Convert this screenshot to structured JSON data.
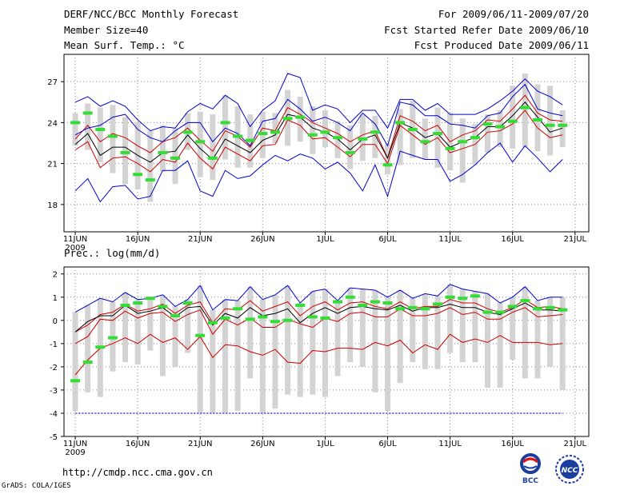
{
  "header": {
    "title": "DERF/NCC/BCC Monthly Forecast",
    "member": "Member Size=40",
    "variable1": "Mean Surf. Temp.: °C",
    "period": "For 2009/06/11-2009/07/20",
    "started": "Fcst Started Refer Date 2009/06/10",
    "produced": "Fcst Produced Date 2009/06/11"
  },
  "footer": {
    "url": "http://cmdp.ncc.cma.gov.cn",
    "grads": "GrADS: COLA/IGES",
    "logo1_text": "BCC",
    "logo2_text": "NCC"
  },
  "colors": {
    "envelope": "#0000cc",
    "spread": "#cc0000",
    "mean": "#000000",
    "median": "#33dd33",
    "box": "#d3d3d3",
    "grid": "#888888"
  },
  "chart_data": [
    {
      "type": "line",
      "title": "Mean Surf. Temp.: °C",
      "x": [
        "11JUN",
        "12JUN",
        "13JUN",
        "14JUN",
        "15JUN",
        "16JUN",
        "17JUN",
        "18JUN",
        "19JUN",
        "20JUN",
        "21JUN",
        "22JUN",
        "23JUN",
        "24JUN",
        "25JUN",
        "26JUN",
        "27JUN",
        "28JUN",
        "29JUN",
        "30JUN",
        "1JUL",
        "2JUL",
        "3JUL",
        "4JUL",
        "5JUL",
        "6JUL",
        "7JUL",
        "8JUL",
        "9JUL",
        "10JUL",
        "11JUL",
        "12JUL",
        "13JUL",
        "14JUL",
        "15JUL",
        "16JUL",
        "17JUL",
        "18JUL",
        "19JUL",
        "20JUL"
      ],
      "x_tick_labels": [
        "11JUN",
        "16JUN",
        "21JUN",
        "26JUN",
        "1JUL",
        "6JUL",
        "11JUL",
        "16JUL",
        "21JUL"
      ],
      "x_year_label": "2009",
      "ylim": [
        16.0,
        29.0
      ],
      "yticks": [
        18,
        21,
        24,
        27
      ],
      "ytick_labels": [
        "18",
        "21",
        "24",
        "27"
      ],
      "series": [
        {
          "name": "max",
          "values": [
            19.0,
            19.9,
            18.2,
            19.3,
            19.4,
            18.4,
            18.6,
            20.5,
            20.5,
            21.2,
            19.0,
            18.6,
            20.5,
            19.9,
            20.1,
            20.9,
            21.6,
            21.2,
            21.7,
            21.4,
            20.6,
            21.1,
            20.3,
            19.0,
            20.9,
            18.6,
            21.9,
            21.6,
            21.3,
            21.3,
            19.7,
            20.2,
            20.9,
            21.8,
            22.5,
            21.1,
            22.3,
            21.4,
            20.4,
            21.3
          ]
        },
        {
          "name": "upper",
          "values": [
            25.5,
            25.9,
            25.2,
            25.6,
            25.2,
            24.2,
            23.4,
            23.7,
            23.6,
            24.8,
            25.4,
            25.0,
            26.0,
            25.4,
            23.7,
            24.9,
            25.6,
            27.6,
            27.3,
            24.9,
            25.3,
            25.0,
            24.0,
            24.9,
            24.9,
            23.6,
            25.7,
            25.7,
            24.9,
            25.4,
            24.6,
            24.6,
            24.6,
            25.0,
            25.6,
            26.3,
            27.2,
            26.3,
            25.9,
            25.3
          ]
        },
        {
          "name": "p75",
          "values": [
            22.8,
            23.8,
            22.6,
            23.2,
            22.9,
            22.3,
            21.8,
            22.6,
            22.9,
            23.6,
            22.7,
            21.9,
            23.4,
            23.0,
            22.2,
            23.6,
            23.4,
            25.1,
            24.6,
            24.0,
            23.6,
            23.2,
            22.6,
            23.1,
            23.4,
            21.4,
            24.5,
            24.1,
            23.4,
            23.8,
            22.6,
            23.1,
            23.4,
            24.2,
            24.1,
            25.0,
            26.0,
            24.7,
            24.2,
            24.1
          ]
        },
        {
          "name": "mean",
          "values": [
            22.4,
            23.2,
            21.6,
            22.2,
            22.2,
            21.6,
            21.1,
            21.8,
            21.9,
            23.1,
            22.1,
            21.3,
            22.8,
            22.3,
            21.8,
            22.7,
            23.1,
            24.6,
            24.4,
            23.6,
            23.3,
            22.8,
            22.0,
            22.8,
            23.1,
            21.4,
            24.0,
            23.6,
            22.9,
            23.2,
            22.2,
            22.6,
            22.9,
            23.7,
            23.7,
            24.5,
            25.5,
            24.4,
            23.3,
            23.6
          ]
        },
        {
          "name": "p25",
          "values": [
            22.0,
            22.6,
            20.7,
            21.4,
            21.5,
            21.0,
            20.4,
            21.3,
            21.1,
            22.5,
            21.4,
            20.6,
            22.2,
            21.7,
            21.2,
            22.3,
            22.4,
            24.2,
            23.8,
            22.8,
            22.9,
            22.2,
            21.5,
            22.4,
            22.4,
            21.0,
            23.8,
            23.1,
            22.4,
            22.9,
            21.8,
            22.1,
            22.4,
            23.3,
            23.4,
            23.9,
            24.9,
            23.6,
            22.9,
            23.1
          ]
        },
        {
          "name": "min",
          "values": [
            23.1,
            23.6,
            23.8,
            24.4,
            24.6,
            23.5,
            22.9,
            22.6,
            23.4,
            24.0,
            24.0,
            22.6,
            23.6,
            23.2,
            22.3,
            24.1,
            24.3,
            25.7,
            25.0,
            24.1,
            24.4,
            24.0,
            23.4,
            24.7,
            23.9,
            22.3,
            25.5,
            25.3,
            24.5,
            24.5,
            23.9,
            23.8,
            23.6,
            24.5,
            24.7,
            25.9,
            26.8,
            25.0,
            24.7,
            24.5
          ]
        }
      ],
      "medians": [
        24.0,
        24.7,
        23.5,
        23.0,
        21.8,
        20.2,
        19.8,
        21.8,
        21.4,
        23.3,
        22.6,
        21.4,
        24.0,
        23.0,
        22.7,
        23.2,
        23.3,
        24.3,
        24.4,
        23.1,
        23.3,
        22.9,
        21.8,
        22.8,
        23.3,
        20.9,
        24.0,
        23.5,
        22.6,
        23.2,
        22.1,
        22.6,
        22.9,
        23.9,
        23.7,
        24.1,
        25.1,
        24.2,
        23.8,
        23.8
      ],
      "box_low": [
        22.3,
        22.0,
        21.1,
        20.3,
        19.5,
        19.1,
        18.2,
        20.4,
        19.5,
        22.0,
        20.0,
        19.8,
        21.3,
        20.7,
        20.7,
        21.4,
        22.5,
        22.3,
        22.6,
        21.7,
        22.2,
        21.4,
        20.6,
        21.2,
        21.4,
        20.2,
        20.9,
        21.4,
        21.3,
        20.7,
        20.5,
        19.6,
        20.9,
        21.8,
        22.2,
        22.1,
        22.2,
        21.9,
        21.6,
        22.2
      ],
      "box_high": [
        24.7,
        25.4,
        25.1,
        25.3,
        24.4,
        24.0,
        23.4,
        23.8,
        23.6,
        24.7,
        24.8,
        24.6,
        26.0,
        25.2,
        24.6,
        24.8,
        24.7,
        26.4,
        25.9,
        25.2,
        24.9,
        24.1,
        23.8,
        24.6,
        24.5,
        22.5,
        25.0,
        25.6,
        24.3,
        25.1,
        24.7,
        24.3,
        23.9,
        24.6,
        24.9,
        26.7,
        27.6,
        26.8,
        26.7,
        24.9
      ]
    },
    {
      "type": "line",
      "title": "Prec.: log(mm/d)",
      "x": [
        "11JUN",
        "12JUN",
        "13JUN",
        "14JUN",
        "15JUN",
        "16JUN",
        "17JUN",
        "18JUN",
        "19JUN",
        "20JUN",
        "21JUN",
        "22JUN",
        "23JUN",
        "24JUN",
        "25JUN",
        "26JUN",
        "27JUN",
        "28JUN",
        "29JUN",
        "30JUN",
        "1JUL",
        "2JUL",
        "3JUL",
        "4JUL",
        "5JUL",
        "6JUL",
        "7JUL",
        "8JUL",
        "9JUL",
        "10JUL",
        "11JUL",
        "12JUL",
        "13JUL",
        "14JUL",
        "15JUL",
        "16JUL",
        "17JUL",
        "18JUL",
        "19JUL",
        "20JUL"
      ],
      "x_tick_labels": [
        "11JUN",
        "16JUN",
        "21JUN",
        "26JUN",
        "1JUL",
        "6JUL",
        "11JUL",
        "16JUL",
        "21JUL"
      ],
      "x_year_label": "2009",
      "ylim": [
        -5,
        2.3
      ],
      "yticks": [
        -5,
        -4,
        -3,
        -2,
        -1,
        0,
        1,
        2
      ],
      "ytick_labels": [
        "-5",
        "-4",
        "-3",
        "-2",
        "-1",
        "0",
        "1",
        "2"
      ],
      "series": [
        {
          "name": "upper",
          "values": [
            0.35,
            0.65,
            0.95,
            0.8,
            1.2,
            0.9,
            0.95,
            1.1,
            0.6,
            0.9,
            1.5,
            0.45,
            0.9,
            0.85,
            1.45,
            0.9,
            1.1,
            1.5,
            0.75,
            1.25,
            1.35,
            0.85,
            1.4,
            1.35,
            1.3,
            1.0,
            1.3,
            0.95,
            1.15,
            1.05,
            1.55,
            1.35,
            1.25,
            1.15,
            0.75,
            1.0,
            1.45,
            0.85,
            1.0,
            1.0
          ]
        },
        {
          "name": "p75",
          "values": [
            -0.5,
            -0.2,
            0.25,
            0.35,
            0.7,
            0.4,
            0.5,
            0.7,
            0.3,
            0.65,
            0.8,
            -0.1,
            0.5,
            0.45,
            0.85,
            0.4,
            0.6,
            0.8,
            0.2,
            0.6,
            0.8,
            0.45,
            0.75,
            0.8,
            0.6,
            0.5,
            0.8,
            0.5,
            0.6,
            0.6,
            0.9,
            0.75,
            0.75,
            0.5,
            0.35,
            0.55,
            0.9,
            0.55,
            0.6,
            0.5
          ]
        },
        {
          "name": "mean",
          "values": [
            -0.5,
            -0.05,
            0.2,
            0.2,
            0.65,
            0.3,
            0.4,
            0.55,
            0.15,
            0.55,
            0.6,
            -0.2,
            0.3,
            0.1,
            0.55,
            0.2,
            0.3,
            0.5,
            -0.1,
            0.3,
            0.55,
            0.3,
            0.55,
            0.6,
            0.5,
            0.45,
            0.65,
            0.4,
            0.55,
            0.55,
            0.7,
            0.55,
            0.55,
            0.35,
            0.25,
            0.5,
            0.75,
            0.45,
            0.45,
            0.4
          ]
        },
        {
          "name": "p25",
          "values": [
            -1.0,
            -0.7,
            0.05,
            0.0,
            0.4,
            0.1,
            0.3,
            0.35,
            -0.05,
            0.25,
            0.45,
            -0.6,
            0.05,
            -0.2,
            0.1,
            -0.3,
            -0.3,
            0.05,
            -0.15,
            -0.3,
            0.1,
            -0.05,
            0.3,
            0.35,
            0.15,
            0.15,
            0.5,
            0.2,
            0.2,
            0.3,
            0.55,
            0.25,
            0.35,
            0.05,
            0.05,
            0.35,
            0.55,
            0.15,
            0.2,
            0.25
          ]
        },
        {
          "name": "lower",
          "values": [
            -2.35,
            -1.7,
            -1.2,
            -1.0,
            -0.75,
            -1.0,
            -0.6,
            -0.95,
            -0.75,
            -1.25,
            -0.7,
            -1.6,
            -1.05,
            -1.1,
            -1.35,
            -1.5,
            -1.25,
            -1.8,
            -1.85,
            -1.3,
            -1.35,
            -1.2,
            -1.2,
            -1.25,
            -0.95,
            -1.1,
            -0.85,
            -1.4,
            -1.05,
            -1.25,
            -0.6,
            -0.95,
            -0.8,
            -0.95,
            -0.65,
            -0.95,
            -0.95,
            -0.95,
            -1.05,
            -1.0
          ]
        },
        {
          "name": "min",
          "values": [
            -4,
            -4,
            -4,
            -4,
            -4,
            -4,
            -4,
            -4,
            -4,
            -4,
            -4,
            -4,
            -4,
            -4,
            -4,
            -4,
            -4,
            -4,
            -4,
            -4,
            -4,
            -4,
            -4,
            -4,
            -4,
            -4,
            -4,
            -4,
            -4,
            -4,
            -4,
            -4,
            -4,
            -4,
            -4,
            -4,
            -4,
            -4,
            -4,
            -4
          ]
        }
      ],
      "medians": [
        -2.6,
        -1.8,
        -1.15,
        -0.75,
        0.65,
        0.75,
        0.95,
        0.6,
        0.2,
        0.75,
        -0.65,
        -0.1,
        0.1,
        0.5,
        0.05,
        0.15,
        -0.05,
        0.0,
        0.65,
        0.15,
        0.1,
        0.8,
        1.0,
        0.65,
        0.8,
        0.75,
        0.5,
        0.55,
        0.5,
        0.7,
        1.0,
        0.95,
        1.05,
        0.35,
        0.35,
        0.6,
        0.85,
        0.5,
        0.55,
        0.45
      ],
      "box_low": [
        -3.9,
        -3.1,
        -3.3,
        -2.2,
        -1.8,
        -1.9,
        -1.3,
        -2.4,
        -2.0,
        -1.4,
        -4.0,
        -4.0,
        -4.0,
        -3.9,
        -2.5,
        -4.0,
        -3.8,
        -3.2,
        -3.3,
        -3.2,
        -3.3,
        -2.4,
        -1.8,
        -2.0,
        -3.1,
        -3.9,
        -2.7,
        -1.8,
        -2.1,
        -2.1,
        -1.4,
        -1.8,
        -1.8,
        -2.9,
        -2.9,
        -1.7,
        -2.5,
        -2.5,
        -2.0,
        -3.0
      ]
    }
  ]
}
